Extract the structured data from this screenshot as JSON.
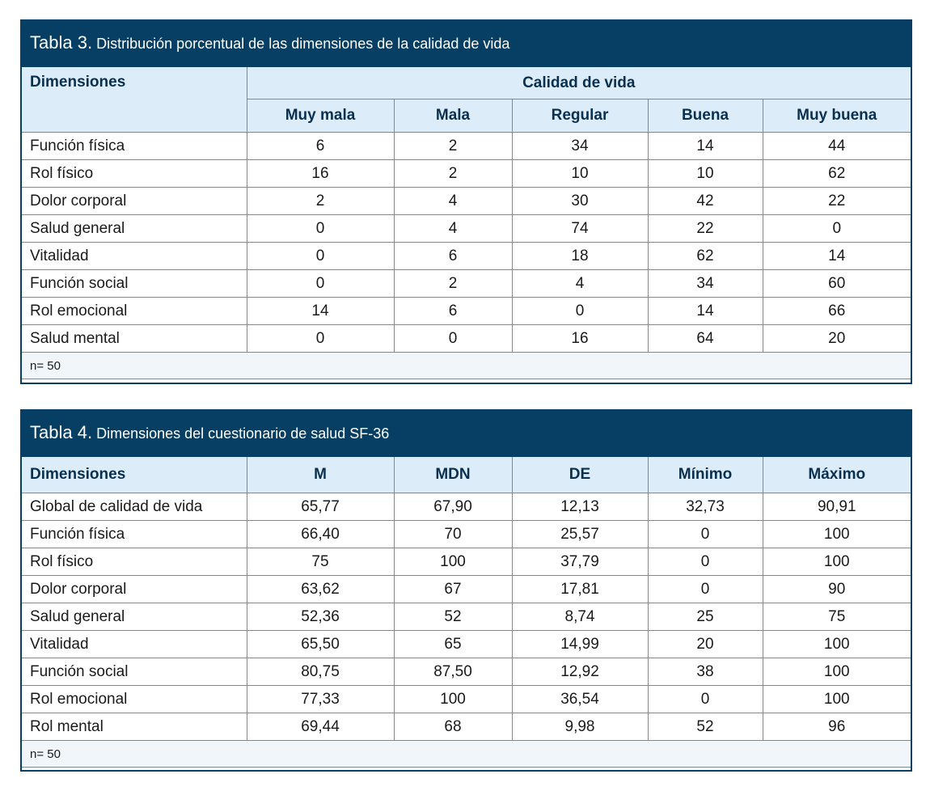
{
  "table3": {
    "caption_num": "Tabla 3.",
    "caption_text": "Distribución porcentual de las dimensiones de la calidad de vida",
    "col_dim": "Dimensiones",
    "group_header": "Calidad de vida",
    "columns": [
      "Muy mala",
      "Mala",
      "Regular",
      "Buena",
      "Muy buena"
    ],
    "rows": [
      {
        "name": "Función física",
        "values": [
          "6",
          "2",
          "34",
          "14",
          "44"
        ]
      },
      {
        "name": "Rol físico",
        "values": [
          "16",
          "2",
          "10",
          "10",
          "62"
        ]
      },
      {
        "name": "Dolor corporal",
        "values": [
          "2",
          "4",
          "30",
          "42",
          "22"
        ]
      },
      {
        "name": "Salud general",
        "values": [
          "0",
          "4",
          "74",
          "22",
          "0"
        ]
      },
      {
        "name": "Vitalidad",
        "values": [
          "0",
          "6",
          "18",
          "62",
          "14"
        ]
      },
      {
        "name": "Función social",
        "values": [
          "0",
          "2",
          "4",
          "34",
          "60"
        ]
      },
      {
        "name": "Rol emocional",
        "values": [
          "14",
          "6",
          "0",
          "14",
          "66"
        ]
      },
      {
        "name": "Salud mental",
        "values": [
          "0",
          "0",
          "16",
          "64",
          "20"
        ]
      }
    ],
    "note": "n= 50"
  },
  "table4": {
    "caption_num": "Tabla 4.",
    "caption_text": "Dimensiones del cuestionario de salud SF-36",
    "columns": [
      "Dimensiones",
      "M",
      "MDN",
      "DE",
      "Mínimo",
      "Máximo"
    ],
    "rows": [
      {
        "name": "Global de calidad de vida",
        "values": [
          "65,77",
          "67,90",
          "12,13",
          "32,73",
          "90,91"
        ]
      },
      {
        "name": "Función física",
        "values": [
          "66,40",
          "70",
          "25,57",
          "0",
          "100"
        ]
      },
      {
        "name": "Rol físico",
        "values": [
          "75",
          "100",
          "37,79",
          "0",
          "100"
        ]
      },
      {
        "name": "Dolor corporal",
        "values": [
          "63,62",
          "67",
          "17,81",
          "0",
          "90"
        ]
      },
      {
        "name": "Salud general",
        "values": [
          "52,36",
          "52",
          "8,74",
          "25",
          "75"
        ]
      },
      {
        "name": "Vitalidad",
        "values": [
          "65,50",
          "65",
          "14,99",
          "20",
          "100"
        ]
      },
      {
        "name": "Función social",
        "values": [
          "80,75",
          "87,50",
          "12,92",
          "38",
          "100"
        ]
      },
      {
        "name": "Rol emocional",
        "values": [
          "77,33",
          "100",
          "36,54",
          "0",
          "100"
        ]
      },
      {
        "name": "Rol mental",
        "values": [
          "69,44",
          "68",
          "9,98",
          "52",
          "96"
        ]
      }
    ],
    "note": "n= 50"
  }
}
